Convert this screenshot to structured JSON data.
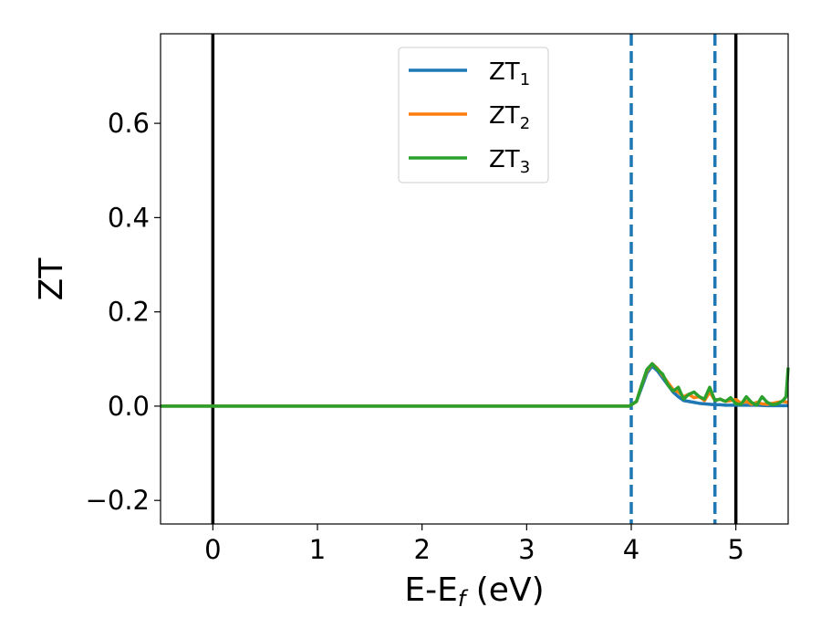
{
  "chart_data": {
    "type": "line",
    "title": "",
    "xlabel": "E-E",
    "xlabel_sub": "f",
    "xlabel_unit": " (eV)",
    "ylabel": "ZT",
    "xlim": [
      -0.5,
      5.5
    ],
    "ylim": [
      -0.25,
      0.79
    ],
    "xticks": [
      0,
      1,
      2,
      3,
      4,
      5
    ],
    "xtick_labels": [
      "0",
      "1",
      "2",
      "3",
      "4",
      "5"
    ],
    "yticks": [
      -0.2,
      0.0,
      0.2,
      0.4,
      0.6
    ],
    "ytick_labels": [
      "−0.2",
      "0.0",
      "0.2",
      "0.4",
      "0.6"
    ],
    "grid": false,
    "legend_position": "top-center",
    "vertical_lines": [
      {
        "x": 0.0,
        "style": "solid",
        "color": "#000000"
      },
      {
        "x": 5.0,
        "style": "solid",
        "color": "#000000"
      },
      {
        "x": 4.0,
        "style": "dashed",
        "color": "#1f77b4"
      },
      {
        "x": 4.8,
        "style": "dashed",
        "color": "#1f77b4"
      }
    ],
    "series": [
      {
        "name": "ZT",
        "name_sub": "1",
        "color": "#1f77b4",
        "x": [
          -0.5,
          3.98,
          4.05,
          4.1,
          4.15,
          4.2,
          4.25,
          4.3,
          4.35,
          4.4,
          4.45,
          4.5,
          4.55,
          4.6,
          4.65,
          4.7,
          4.75,
          4.8,
          4.85,
          4.9,
          4.95,
          5.0,
          5.1,
          5.2,
          5.3,
          5.4,
          5.5
        ],
        "y": [
          0.0,
          0.0,
          0.01,
          0.04,
          0.07,
          0.085,
          0.075,
          0.06,
          0.045,
          0.03,
          0.02,
          0.012,
          0.01,
          0.008,
          0.006,
          0.005,
          0.004,
          0.003,
          0.003,
          0.002,
          0.002,
          0.002,
          0.002,
          0.002,
          0.001,
          0.001,
          0.001
        ]
      },
      {
        "name": "ZT",
        "name_sub": "2",
        "color": "#ff7f0e",
        "x": [
          -0.5,
          3.98,
          4.05,
          4.1,
          4.15,
          4.2,
          4.25,
          4.3,
          4.35,
          4.4,
          4.45,
          4.5,
          4.55,
          4.6,
          4.65,
          4.7,
          4.75,
          4.8,
          4.85,
          4.9,
          4.95,
          5.0,
          5.05,
          5.1,
          5.15,
          5.2,
          5.25,
          5.3,
          5.35,
          5.4,
          5.45,
          5.5
        ],
        "y": [
          0.0,
          0.0,
          0.01,
          0.045,
          0.075,
          0.09,
          0.08,
          0.065,
          0.05,
          0.035,
          0.03,
          0.02,
          0.025,
          0.018,
          0.02,
          0.012,
          0.03,
          0.012,
          0.015,
          0.01,
          0.012,
          0.014,
          0.006,
          0.01,
          0.004,
          0.008,
          0.005,
          0.004,
          0.006,
          0.008,
          0.01,
          0.008
        ]
      },
      {
        "name": "ZT",
        "name_sub": "3",
        "color": "#2ca02c",
        "x": [
          -0.5,
          3.98,
          4.05,
          4.1,
          4.15,
          4.2,
          4.25,
          4.3,
          4.35,
          4.4,
          4.45,
          4.5,
          4.55,
          4.6,
          4.65,
          4.7,
          4.75,
          4.8,
          4.85,
          4.9,
          4.95,
          5.0,
          5.05,
          5.1,
          5.15,
          5.2,
          5.25,
          5.3,
          5.35,
          5.4,
          5.45,
          5.48,
          5.5
        ],
        "y": [
          0.0,
          0.0,
          0.01,
          0.045,
          0.078,
          0.09,
          0.078,
          0.068,
          0.045,
          0.032,
          0.04,
          0.015,
          0.025,
          0.03,
          0.02,
          0.015,
          0.04,
          0.012,
          0.015,
          0.01,
          0.018,
          0.005,
          0.004,
          0.02,
          0.008,
          0.002,
          0.02,
          0.008,
          0.003,
          0.005,
          0.012,
          0.02,
          0.082
        ]
      }
    ]
  }
}
